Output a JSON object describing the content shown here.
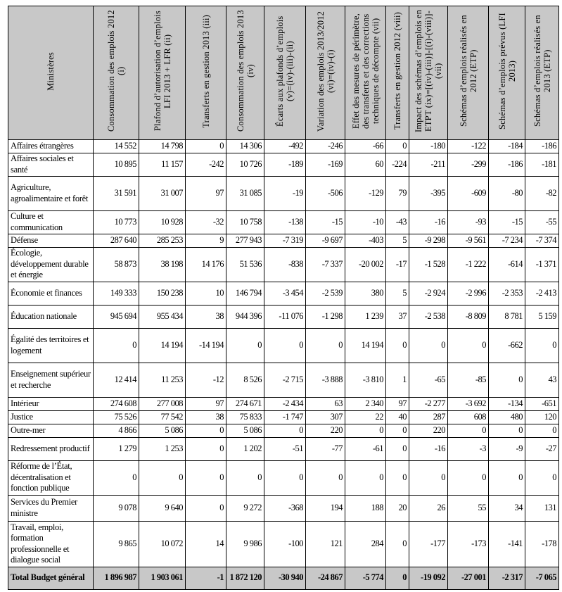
{
  "columns": [
    "Ministères",
    "Consommation des emplois 2012 (i)",
    "Plafond d’autorisation d’emplois LFI 2013 + LFR (ii)",
    "Transferts en gestion 2013 (iii)",
    "Consommation des emplois 2013 (iv)",
    "Écarts aux plafonds d’emplois (v)=(iv)-(iii)-(ii)",
    "Variation des emplois 2013/2012 (vi)=(iv)-(i)",
    "Effet des mesures de périmètre, des transferts et des corrections techniques de décompte (vii)",
    "Transferts en gestion 2012 (viii)",
    "Impact des schémas d’emplois en ETPT (ix)=[(iv)-(iii)]-[(i)-(viii)]-(vii)",
    "Schémas d’emplois réalisés en 2012 (ETP)",
    "Schémas d’emplois prévus (LFI 2013)",
    "Schémas d’emplois réalisés en 2013 (ETP)"
  ],
  "rows": [
    {
      "name": "Affaires étrangères",
      "values": [
        "14 552",
        "14 798",
        "0",
        "14 306",
        "-492",
        "-246",
        "-66",
        "0",
        "-180",
        "-122",
        "-184",
        "-186"
      ]
    },
    {
      "name": "Affaires sociales et santé",
      "values": [
        "10 895",
        "11 157",
        "-242",
        "10 726",
        "-189",
        "-169",
        "60",
        "-224",
        "-211",
        "-299",
        "-186",
        "-181"
      ]
    },
    {
      "name": "Agriculture, agroalimentaire et forêt",
      "values": [
        "31 591",
        "31 007",
        "97",
        "31 085",
        "-19",
        "-506",
        "-129",
        "79",
        "-395",
        "-609",
        "-80",
        "-82"
      ]
    },
    {
      "name": "Culture et communication",
      "values": [
        "10 773",
        "10 928",
        "-32",
        "10 758",
        "-138",
        "-15",
        "-10",
        "-43",
        "-16",
        "-93",
        "-15",
        "-55"
      ]
    },
    {
      "name": "Défense",
      "values": [
        "287 640",
        "285 253",
        "9",
        "277 943",
        "-7 319",
        "-9 697",
        "-403",
        "5",
        "-9 298",
        "-9 561",
        "-7 234",
        "-7 374"
      ]
    },
    {
      "name": "Écologie, développement durable et énergie",
      "values": [
        "58 873",
        "38 198",
        "14 176",
        "51 536",
        "-838",
        "-7 337",
        "-20 002",
        "-17",
        "-1 528",
        "-1 222",
        "-614",
        "-1 371"
      ]
    },
    {
      "name": "Économie et finances",
      "values": [
        "149 333",
        "150 238",
        "10",
        "146 794",
        "-3 454",
        "-2 539",
        "380",
        "5",
        "-2 924",
        "-2 996",
        "-2 353",
        "-2 413"
      ]
    },
    {
      "name": "Éducation nationale",
      "values": [
        "945 694",
        "955 434",
        "38",
        "944 396",
        "-11 076",
        "-1 298",
        "1 239",
        "37",
        "-2 538",
        "-8 809",
        "8 781",
        "5 159"
      ]
    },
    {
      "name": "Égalité des territoires et logement",
      "values": [
        "0",
        "14 194",
        "-14 194",
        "0",
        "0",
        "0",
        "14 194",
        "0",
        "0",
        "0",
        "-662",
        "0"
      ]
    },
    {
      "name": "Enseignement supérieur et recherche",
      "values": [
        "12 414",
        "11 253",
        "-12",
        "8 526",
        "-2 715",
        "-3 888",
        "-3 810",
        "1",
        "-65",
        "-85",
        "0",
        "43"
      ]
    },
    {
      "name": "Intérieur",
      "values": [
        "274 608",
        "277 008",
        "97",
        "274 671",
        "-2 434",
        "63",
        "2 340",
        "97",
        "-2 277",
        "-3 692",
        "-134",
        "-651"
      ]
    },
    {
      "name": "Justice",
      "values": [
        "75 526",
        "77 542",
        "38",
        "75 833",
        "-1 747",
        "307",
        "22",
        "40",
        "287",
        "608",
        "480",
        "120"
      ]
    },
    {
      "name": "Outre-mer",
      "values": [
        "4 866",
        "5 086",
        "0",
        "5 086",
        "0",
        "220",
        "0",
        "0",
        "220",
        "0",
        "0",
        "0"
      ]
    },
    {
      "name": "Redressement productif",
      "values": [
        "1 279",
        "1 253",
        "0",
        "1 202",
        "-51",
        "-77",
        "-61",
        "0",
        "-16",
        "-3",
        "-9",
        "-27"
      ]
    },
    {
      "name": "Réforme de l’État, décentralisation et fonction publique",
      "values": [
        "0",
        "0",
        "0",
        "0",
        "0",
        "0",
        "0",
        "0",
        "0",
        "0",
        "0",
        "0"
      ]
    },
    {
      "name": "Services du Premier ministre",
      "values": [
        "9 078",
        "9 640",
        "0",
        "9 272",
        "-368",
        "194",
        "188",
        "20",
        "26",
        "55",
        "34",
        "131"
      ]
    },
    {
      "name": "Travail, emploi, formation professionnelle et dialogue social",
      "values": [
        "9 865",
        "10 072",
        "14",
        "9 986",
        "-100",
        "121",
        "284",
        "0",
        "-177",
        "-173",
        "-141",
        "-178"
      ]
    }
  ],
  "total": {
    "name": "Total Budget général",
    "values": [
      "1 896 987",
      "1 903 061",
      "-1",
      "1 872 120",
      "-30 940",
      "-24 867",
      "-5 774",
      "0",
      "-19 092",
      "-27 001",
      "-2 317",
      "-7 065"
    ]
  },
  "colors": {
    "header_bg": "#c8c8c8",
    "total_bg": "#c8c8c8"
  }
}
